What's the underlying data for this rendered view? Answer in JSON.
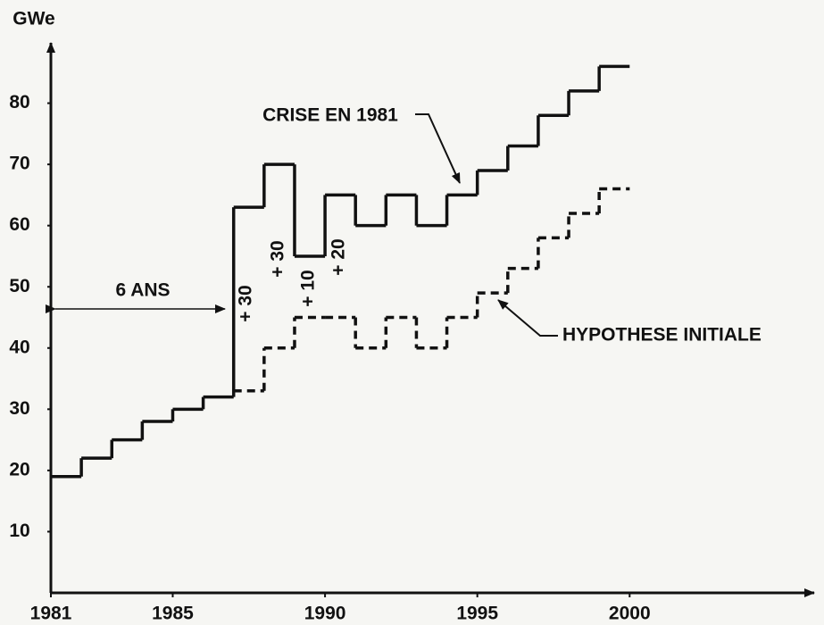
{
  "chart_data": {
    "type": "step",
    "y_label": "GWe",
    "x": [
      1981,
      1982,
      1983,
      1984,
      1985,
      1986,
      1987,
      1988,
      1989,
      1990,
      1991,
      1992,
      1993,
      1994,
      1995,
      1996,
      1997,
      1998,
      1999,
      2000
    ],
    "series": [
      {
        "name": "CRISE EN 1981",
        "color": "#111111",
        "dashed": false,
        "values": [
          19,
          22,
          25,
          28,
          30,
          32,
          63,
          70,
          55,
          65,
          60,
          65,
          60,
          65,
          69,
          73,
          78,
          82,
          86,
          86
        ]
      },
      {
        "name": "HYPOTHESE INITIALE",
        "color": "#111111",
        "dashed": true,
        "values": [
          null,
          null,
          null,
          null,
          null,
          null,
          33,
          40,
          45,
          45,
          40,
          45,
          40,
          45,
          49,
          53,
          58,
          62,
          66,
          66
        ]
      }
    ],
    "annotations": [
      "6 ANS",
      "+ 30",
      "+ 30",
      "+ 10",
      "+ 20"
    ],
    "xlim": [
      1981,
      2006
    ],
    "xticks": [
      1981,
      1985,
      1990,
      1995,
      2000
    ],
    "ylim": [
      0,
      90
    ],
    "yticks": [
      10,
      20,
      30,
      40,
      50,
      60,
      70,
      80
    ]
  }
}
